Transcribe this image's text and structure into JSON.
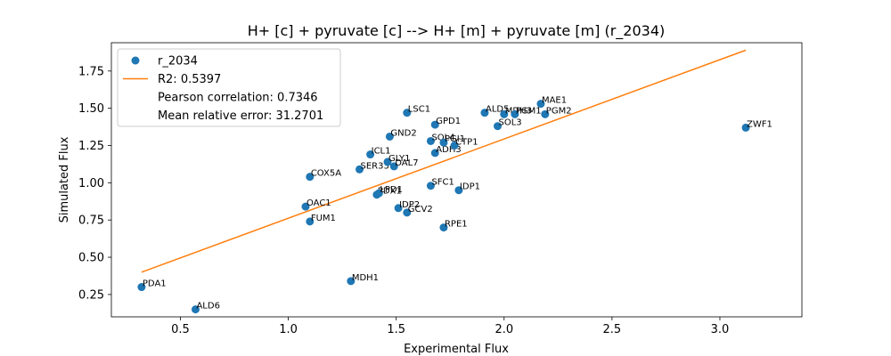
{
  "chart_data": {
    "type": "scatter",
    "title": "H+ [c] + pyruvate [c] --> H+ [m] + pyruvate [m] (r_2034)",
    "xlabel": "Experimental Flux",
    "ylabel": "Simulated Flux",
    "xlim": [
      0.18,
      3.38
    ],
    "ylim": [
      0.1,
      1.94
    ],
    "grid": false,
    "legend_position": "top-left",
    "xticks": [
      0.5,
      1.0,
      1.5,
      2.0,
      2.5,
      3.0
    ],
    "xtick_labels": [
      "0.5",
      "1.0",
      "1.5",
      "2.0",
      "2.5",
      "3.0"
    ],
    "yticks": [
      0.25,
      0.5,
      0.75,
      1.0,
      1.25,
      1.5,
      1.75
    ],
    "ytick_labels": [
      "0.25",
      "0.50",
      "0.75",
      "1.00",
      "1.25",
      "1.50",
      "1.75"
    ],
    "colors": {
      "points": "#1f77b4",
      "fit_line": "#ff7f0e"
    },
    "series": [
      {
        "name": "r_2034",
        "marker": "circle",
        "points": [
          {
            "label": "PDA1",
            "x": 0.32,
            "y": 0.3
          },
          {
            "label": "ALD6",
            "x": 0.57,
            "y": 0.15
          },
          {
            "label": "COX5A",
            "x": 1.1,
            "y": 1.04
          },
          {
            "label": "OAC1",
            "x": 1.08,
            "y": 0.84
          },
          {
            "label": "FUM1",
            "x": 1.1,
            "y": 0.74
          },
          {
            "label": "MDH1",
            "x": 1.29,
            "y": 0.34
          },
          {
            "label": "SER33",
            "x": 1.33,
            "y": 1.09
          },
          {
            "label": "ICL1",
            "x": 1.38,
            "y": 1.19
          },
          {
            "label": "PDX1",
            "x": 1.41,
            "y": 0.92
          },
          {
            "label": "LPD1",
            "x": 1.42,
            "y": 0.93
          },
          {
            "label": "GLY1",
            "x": 1.46,
            "y": 1.14
          },
          {
            "label": "DAL7",
            "x": 1.49,
            "y": 1.11
          },
          {
            "label": "GND2",
            "x": 1.47,
            "y": 1.31
          },
          {
            "label": "IDP2",
            "x": 1.51,
            "y": 0.83
          },
          {
            "label": "GCV2",
            "x": 1.55,
            "y": 0.8
          },
          {
            "label": "LSC1",
            "x": 1.55,
            "y": 1.47
          },
          {
            "label": "SFC1",
            "x": 1.66,
            "y": 0.98
          },
          {
            "label": "SOL4",
            "x": 1.66,
            "y": 1.28
          },
          {
            "label": "GPD1",
            "x": 1.68,
            "y": 1.39
          },
          {
            "label": "ADH3",
            "x": 1.68,
            "y": 1.2
          },
          {
            "label": "PGI1",
            "x": 1.72,
            "y": 1.27
          },
          {
            "label": "CTP1",
            "x": 1.77,
            "y": 1.25
          },
          {
            "label": "IDP1",
            "x": 1.79,
            "y": 0.95
          },
          {
            "label": "RPE1",
            "x": 1.72,
            "y": 0.7
          },
          {
            "label": "ALD5",
            "x": 1.91,
            "y": 1.47
          },
          {
            "label": "SOL3",
            "x": 1.97,
            "y": 1.38
          },
          {
            "label": "MDH3",
            "x": 2.0,
            "y": 1.46
          },
          {
            "label": "PGM1",
            "x": 2.05,
            "y": 1.46
          },
          {
            "label": "MAE1",
            "x": 2.17,
            "y": 1.53
          },
          {
            "label": "PGM2",
            "x": 2.19,
            "y": 1.46
          },
          {
            "label": "ZWF1",
            "x": 3.12,
            "y": 1.37
          }
        ]
      }
    ],
    "fit_line": {
      "name": "R2: 0.5397",
      "x": [
        0.32,
        3.12
      ],
      "y": [
        0.4,
        1.89
      ]
    },
    "legend": [
      {
        "kind": "marker",
        "text": "r_2034"
      },
      {
        "kind": "line",
        "text": "R2: 0.5397"
      },
      {
        "kind": "none",
        "text": "Pearson correlation: 0.7346"
      },
      {
        "kind": "none",
        "text": "Mean relative error: 31.2701"
      }
    ]
  }
}
